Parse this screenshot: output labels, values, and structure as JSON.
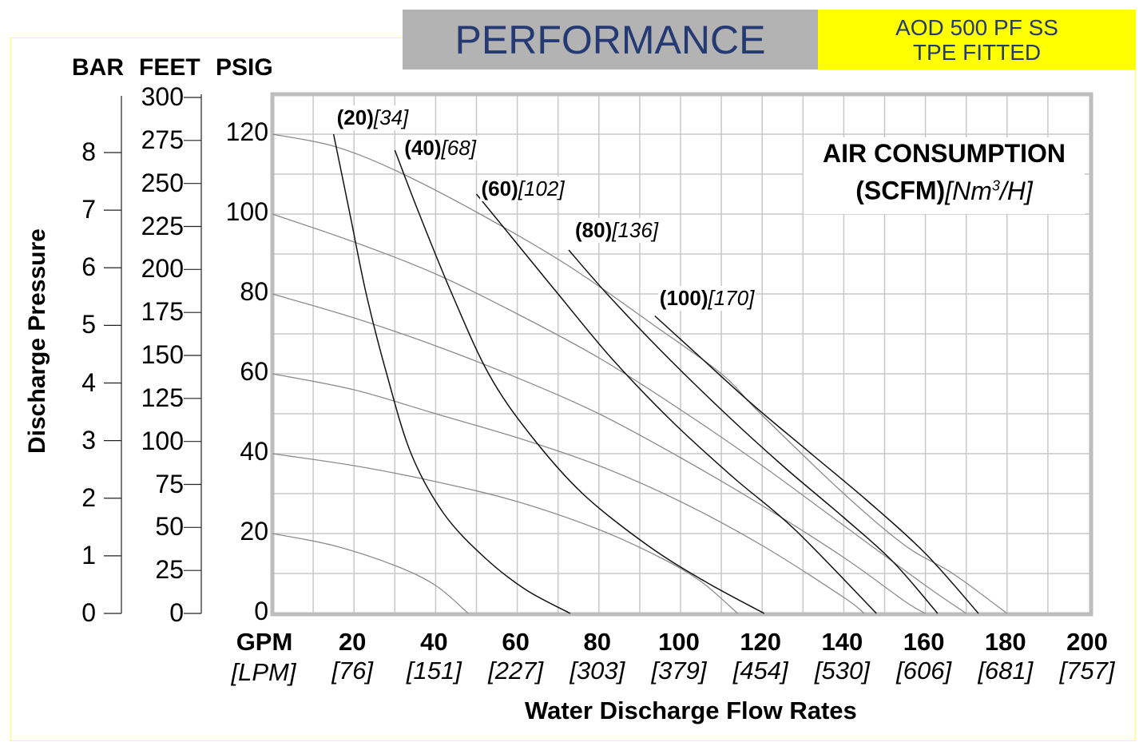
{
  "header": {
    "title": "PERFORMANCE",
    "model_line1": "AOD 500 PF SS",
    "model_line2": "TPE FITTED",
    "title_color": "#253a73",
    "title_bg": "#b3b3b3",
    "model_bg": "#ffff00"
  },
  "chart_data": {
    "type": "line",
    "title": "PERFORMANCE",
    "ylabel": "Discharge Pressure",
    "xlabel": "Water Discharge Flow Rates",
    "xlim": [
      0,
      202
    ],
    "ylim": [
      0,
      130
    ],
    "grid": true,
    "x_unit_primary": "GPM",
    "x_unit_secondary": "[LPM]",
    "x_ticks": [
      {
        "gpm": "20",
        "lpm": "[76]",
        "value": 20
      },
      {
        "gpm": "40",
        "lpm": "[151]",
        "value": 40
      },
      {
        "gpm": "60",
        "lpm": "[227]",
        "value": 60
      },
      {
        "gpm": "80",
        "lpm": "[303]",
        "value": 80
      },
      {
        "gpm": "100",
        "lpm": "[379]",
        "value": 100
      },
      {
        "gpm": "120",
        "lpm": "[454]",
        "value": 120
      },
      {
        "gpm": "140",
        "lpm": "[530]",
        "value": 140
      },
      {
        "gpm": "160",
        "lpm": "[606]",
        "value": 160
      },
      {
        "gpm": "180",
        "lpm": "[681]",
        "value": 180
      },
      {
        "gpm": "200",
        "lpm": "[757]",
        "value": 200
      }
    ],
    "y_axis_psig": {
      "label": "PSIG",
      "ticks": [
        "0",
        "20",
        "40",
        "60",
        "80",
        "100",
        "120"
      ],
      "values": [
        0,
        20,
        40,
        60,
        80,
        100,
        120
      ]
    },
    "y_axis_feet": {
      "label": "FEET",
      "ticks": [
        "0",
        "25",
        "50",
        "75",
        "100",
        "125",
        "150",
        "175",
        "200",
        "225",
        "250",
        "275",
        "300"
      ],
      "values": [
        0,
        25,
        50,
        75,
        100,
        125,
        150,
        175,
        200,
        225,
        250,
        275,
        300
      ]
    },
    "y_axis_bar": {
      "label": "BAR",
      "ticks": [
        "0",
        "1",
        "2",
        "3",
        "4",
        "5",
        "6",
        "7",
        "8"
      ],
      "values": [
        0,
        1,
        2,
        3,
        4,
        5,
        6,
        7,
        8
      ]
    },
    "legend_title_line1": "AIR CONSUMPTION",
    "legend_title_line2_bold": "(SCFM)",
    "legend_title_line2_italic": "[Nm",
    "legend_title_sup": "3",
    "legend_title_line2_end": "/H]",
    "pressure_series": [
      {
        "name": "120 PSIG",
        "x": [
          0,
          15,
          30,
          50,
          72.6,
          93.7,
          110,
          119.6,
          140,
          155,
          166.7,
          180
        ],
        "y": [
          120,
          117,
          111,
          100.5,
          87,
          72,
          60,
          50,
          30,
          17,
          10,
          0
        ]
      },
      {
        "name": "100 PSIG",
        "x": [
          0,
          20,
          40,
          60,
          80,
          100,
          120,
          140,
          160,
          170
        ],
        "y": [
          100,
          93,
          85,
          75,
          64,
          51,
          37,
          22,
          7,
          0
        ]
      },
      {
        "name": "80 PSIG",
        "x": [
          0,
          20,
          40,
          60,
          80,
          100,
          120,
          140,
          155,
          160
        ],
        "y": [
          80,
          74,
          67,
          59,
          50,
          39,
          27,
          14,
          3,
          0
        ]
      },
      {
        "name": "60 PSIG",
        "x": [
          0,
          20,
          40,
          60,
          80,
          100,
          120,
          140,
          145
        ],
        "y": [
          60,
          56,
          50,
          44,
          37,
          28,
          17,
          4,
          0
        ]
      },
      {
        "name": "40 PSIG",
        "x": [
          0,
          20,
          40,
          60,
          80,
          95,
          105,
          114
        ],
        "y": [
          40,
          37,
          33,
          28,
          21,
          14,
          8,
          0
        ]
      },
      {
        "name": "20 PSIG",
        "x": [
          0,
          15,
          30,
          40,
          48
        ],
        "y": [
          20,
          17,
          12,
          7,
          0
        ]
      }
    ],
    "air_series": [
      {
        "name": "(20)",
        "metric": "[34]",
        "x": [
          15,
          19,
          23,
          28,
          34,
          42,
          52,
          62,
          73
        ],
        "y": [
          120,
          100,
          80,
          60,
          40,
          25,
          14,
          6,
          0
        ]
      },
      {
        "name": "(40)",
        "metric": "[68]",
        "x": [
          30,
          36,
          44,
          53,
          63,
          76,
          92,
          106,
          120.5
        ],
        "y": [
          116,
          100,
          80,
          60,
          45,
          30,
          17,
          8,
          0
        ]
      },
      {
        "name": "(60)",
        "metric": "[102]",
        "x": [
          50,
          58,
          70,
          83,
          98,
          113,
          128,
          148
        ],
        "y": [
          105,
          95,
          80,
          64,
          48,
          34,
          21,
          0
        ]
      },
      {
        "name": "(80)",
        "metric": "[136]",
        "x": [
          72.6,
          82,
          95,
          110,
          125,
          140,
          152,
          163
        ],
        "y": [
          91,
          80,
          66,
          51,
          37,
          24,
          13,
          0
        ]
      },
      {
        "name": "(100)",
        "metric": "[170]",
        "x": [
          93.7,
          105,
          118,
          132,
          146,
          160,
          173
        ],
        "y": [
          74.5,
          64,
          52,
          40,
          28,
          15,
          0
        ]
      }
    ]
  }
}
